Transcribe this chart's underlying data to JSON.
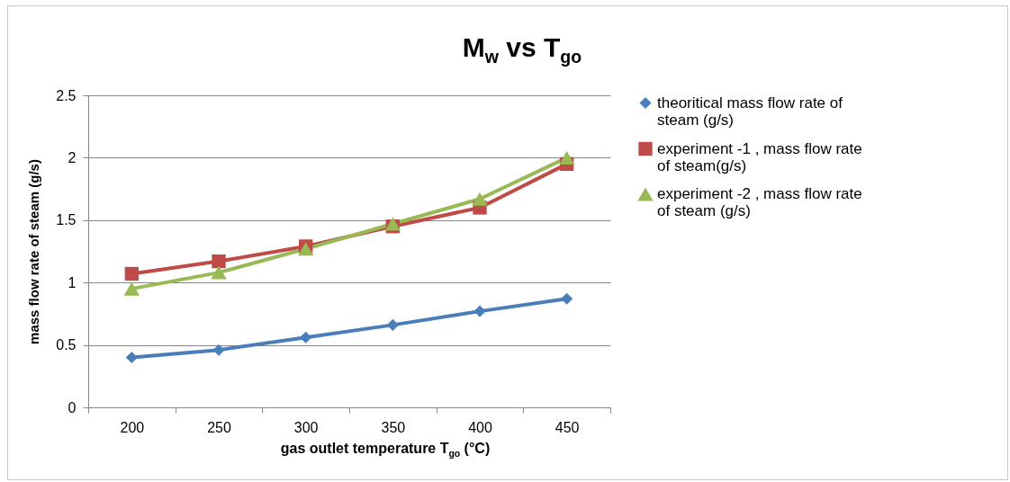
{
  "chart_data": {
    "type": "line",
    "title": "M$_{w}$ vs T$_{go}$",
    "xlabel": "gas outlet temperature T$_{go}$  (°C)",
    "ylabel": "mass flow rate of steam  (g/s)",
    "categories": [
      "200",
      "250",
      "300",
      "350",
      "400",
      "450"
    ],
    "series": [
      {
        "name": "theoritical mass flow rate of steam (g/s)",
        "color": "#4a7ebb",
        "marker": "diamond",
        "values": [
          0.4,
          0.46,
          0.56,
          0.66,
          0.77,
          0.87
        ]
      },
      {
        "name": "experiment -1 , mass flow rate of steam(g/s)",
        "color": "#be4b48",
        "marker": "square",
        "values": [
          1.07,
          1.17,
          1.29,
          1.45,
          1.6,
          1.95
        ]
      },
      {
        "name": "experiment -2 , mass flow rate of steam (g/s)",
        "color": "#98b954",
        "marker": "triangle",
        "values": [
          0.95,
          1.08,
          1.27,
          1.47,
          1.67,
          2.0
        ]
      }
    ],
    "ylim": [
      0,
      2.5
    ],
    "yticks": [
      0,
      0.5,
      1,
      1.5,
      2,
      2.5
    ],
    "grid": "y",
    "legend": "right",
    "line_style": "solid"
  }
}
